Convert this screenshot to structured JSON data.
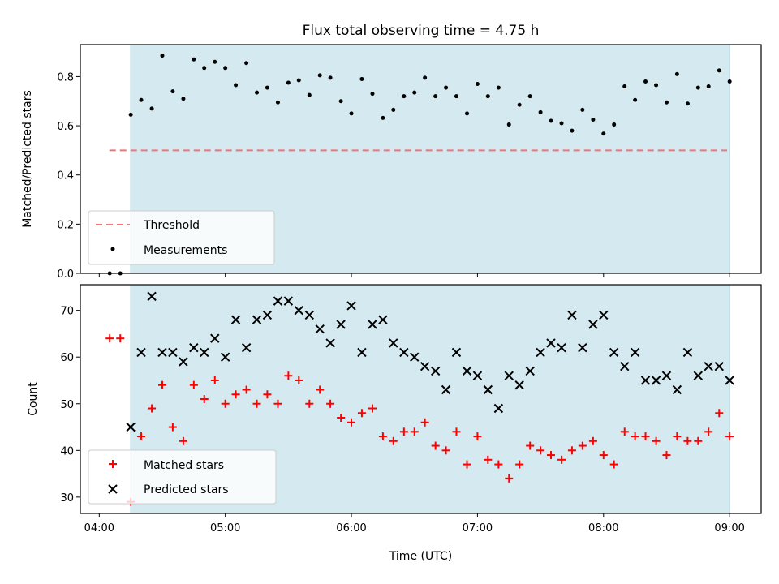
{
  "chart_data": [
    {
      "type": "scatter",
      "title": "Flux total observing time = 4.75 h",
      "ylabel": "Matched/Predicted stars",
      "xlabel": "",
      "ylim": [
        0,
        0.93
      ],
      "yticks": [
        0.0,
        0.2,
        0.4,
        0.6,
        0.8
      ],
      "ytick_labels": [
        "0.0",
        "0.2",
        "0.4",
        "0.6",
        "0.8"
      ],
      "observing_window_hours": [
        4.25,
        9.0
      ],
      "observing_window_color": "#d4eaf0",
      "threshold": {
        "value": 0.5,
        "x_range": [
          4.08,
          8.98
        ],
        "color": "#f07575"
      },
      "legend": {
        "placement": "lower-left",
        "entries": [
          "Threshold",
          "Measurements"
        ]
      },
      "series": [
        {
          "name": "Measurements",
          "color": "#000000",
          "x": [
            4.083,
            4.167,
            4.25,
            4.333,
            4.417,
            4.5,
            4.583,
            4.667,
            4.75,
            4.833,
            4.917,
            5.0,
            5.083,
            5.167,
            5.25,
            5.333,
            5.417,
            5.5,
            5.583,
            5.667,
            5.75,
            5.833,
            5.917,
            6.0,
            6.083,
            6.167,
            6.25,
            6.333,
            6.417,
            6.5,
            6.583,
            6.667,
            6.75,
            6.833,
            6.917,
            7.0,
            7.083,
            7.167,
            7.25,
            7.333,
            7.417,
            7.5,
            7.583,
            7.667,
            7.75,
            7.833,
            7.917,
            8.0,
            8.083,
            8.167,
            8.25,
            8.333,
            8.417,
            8.5,
            8.583,
            8.667,
            8.75,
            8.833,
            8.917,
            9.0
          ],
          "y": [
            0.0,
            0.0,
            0.645,
            0.705,
            0.67,
            0.885,
            0.74,
            0.71,
            0.87,
            0.835,
            0.86,
            0.835,
            0.765,
            0.855,
            0.735,
            0.755,
            0.695,
            0.775,
            0.785,
            0.725,
            0.805,
            0.795,
            0.7,
            0.65,
            0.79,
            0.73,
            0.632,
            0.665,
            0.72,
            0.735,
            0.795,
            0.72,
            0.755,
            0.72,
            0.65,
            0.77,
            0.72,
            0.755,
            0.605,
            0.685,
            0.72,
            0.655,
            0.62,
            0.61,
            0.58,
            0.665,
            0.625,
            0.568,
            0.605,
            0.76,
            0.705,
            0.78,
            0.765,
            0.695,
            0.81,
            0.69,
            0.755,
            0.76,
            0.825,
            0.78
          ]
        }
      ]
    },
    {
      "type": "scatter",
      "title": "",
      "ylabel": "Count",
      "xlabel": "Time (UTC)",
      "ylim": [
        26.5,
        75.5
      ],
      "yticks": [
        30,
        40,
        50,
        60,
        70
      ],
      "ytick_labels": [
        "30",
        "40",
        "50",
        "60",
        "70"
      ],
      "xlim": [
        3.85,
        9.25
      ],
      "xticks": [
        4,
        5,
        6,
        7,
        8,
        9
      ],
      "xtick_labels": [
        "04:00",
        "05:00",
        "06:00",
        "07:00",
        "08:00",
        "09:00"
      ],
      "observing_window_hours": [
        4.25,
        9.0
      ],
      "legend": {
        "placement": "lower-left",
        "entries": [
          "Matched stars",
          "Predicted stars"
        ]
      },
      "x": [
        4.083,
        4.167,
        4.25,
        4.333,
        4.417,
        4.5,
        4.583,
        4.667,
        4.75,
        4.833,
        4.917,
        5.0,
        5.083,
        5.167,
        5.25,
        5.333,
        5.417,
        5.5,
        5.583,
        5.667,
        5.75,
        5.833,
        5.917,
        6.0,
        6.083,
        6.167,
        6.25,
        6.333,
        6.417,
        6.5,
        6.583,
        6.667,
        6.75,
        6.833,
        6.917,
        7.0,
        7.083,
        7.167,
        7.25,
        7.333,
        7.417,
        7.5,
        7.583,
        7.667,
        7.75,
        7.833,
        7.917,
        8.0,
        8.083,
        8.167,
        8.25,
        8.333,
        8.417,
        8.5,
        8.583,
        8.667,
        8.75,
        8.833,
        8.917,
        9.0
      ],
      "series": [
        {
          "name": "Matched stars",
          "color": "#ff0000",
          "marker": "plus",
          "x_start_index": 0,
          "values": [
            64,
            64,
            29,
            43,
            49,
            54,
            45,
            42,
            54,
            51,
            55,
            50,
            52,
            53,
            50,
            52,
            50,
            56,
            55,
            50,
            53,
            50,
            47,
            46,
            48,
            49,
            43,
            42,
            44,
            44,
            46,
            41,
            40,
            44,
            37,
            43,
            38,
            37,
            34,
            37,
            41,
            40,
            39,
            38,
            40,
            41,
            42,
            39,
            37,
            44,
            43,
            43,
            42,
            39,
            43,
            42,
            42,
            44,
            48,
            43
          ]
        },
        {
          "name": "Predicted stars",
          "color": "#000000",
          "marker": "x",
          "x_start_index": 2,
          "values": [
            45,
            61,
            73,
            61,
            61,
            59,
            62,
            61,
            64,
            60,
            68,
            62,
            68,
            69,
            72,
            72,
            70,
            69,
            66,
            63,
            67,
            71,
            61,
            67,
            68,
            63,
            61,
            60,
            58,
            57,
            53,
            61,
            57,
            56,
            53,
            49,
            56,
            54,
            57,
            61,
            63,
            62,
            69,
            62,
            67,
            69,
            61,
            58,
            61,
            55,
            55,
            56,
            53,
            61,
            56,
            58,
            58,
            55
          ]
        }
      ]
    }
  ]
}
